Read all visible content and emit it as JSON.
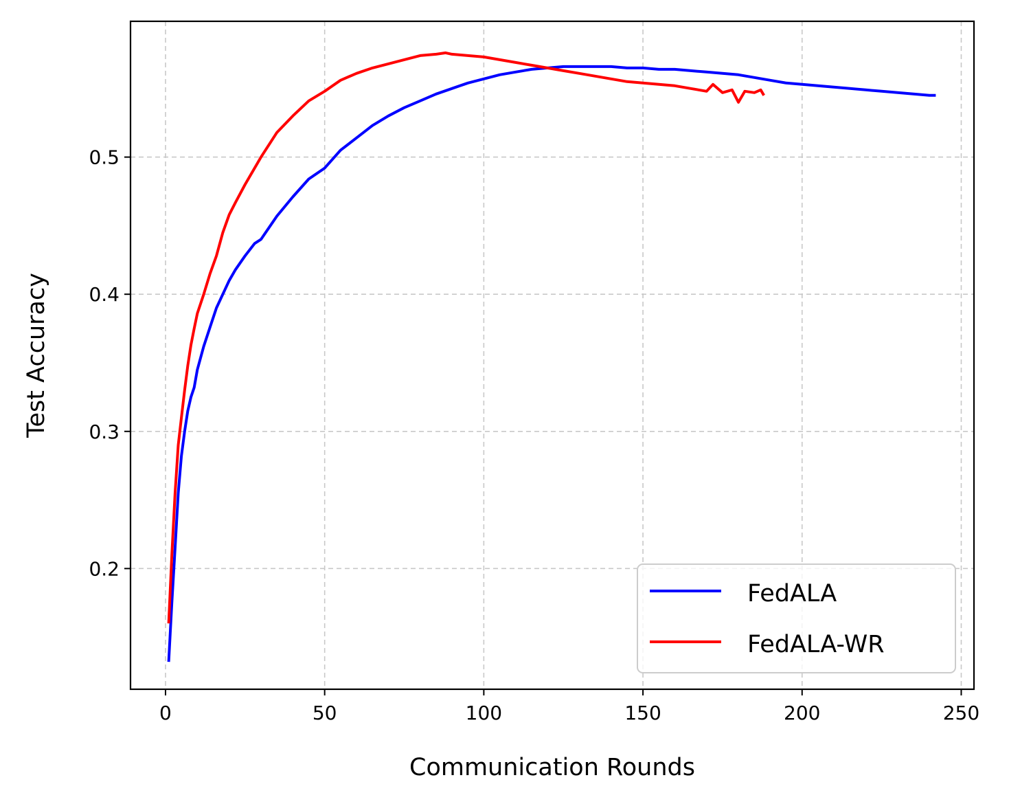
{
  "chart_data": {
    "type": "line",
    "title": "",
    "xlabel": "Communication Rounds",
    "ylabel": "Test Accuracy",
    "xlim": [
      -11,
      254
    ],
    "ylim": [
      0.112,
      0.599
    ],
    "xticks": [
      0,
      50,
      100,
      150,
      200,
      250
    ],
    "xtick_labels": [
      "0",
      "50",
      "100",
      "150",
      "200",
      "250"
    ],
    "yticks": [
      0.2,
      0.3,
      0.4,
      0.5
    ],
    "ytick_labels": [
      "0.2",
      "0.3",
      "0.4",
      "0.5"
    ],
    "grid": true,
    "legend_position": "bottom-right",
    "series": [
      {
        "name": "FedALA",
        "color": "#0000ff",
        "x": [
          1,
          2,
          3,
          4,
          5,
          6,
          7,
          8,
          9,
          10,
          12,
          14,
          16,
          18,
          20,
          22,
          25,
          28,
          30,
          35,
          40,
          45,
          50,
          55,
          60,
          65,
          70,
          75,
          80,
          85,
          90,
          95,
          100,
          105,
          110,
          115,
          120,
          125,
          130,
          135,
          140,
          145,
          150,
          155,
          160,
          165,
          170,
          175,
          180,
          185,
          190,
          195,
          200,
          205,
          210,
          215,
          220,
          225,
          230,
          235,
          240,
          242
        ],
        "y": [
          0.132,
          0.175,
          0.215,
          0.255,
          0.282,
          0.3,
          0.315,
          0.325,
          0.332,
          0.345,
          0.362,
          0.376,
          0.39,
          0.4,
          0.41,
          0.418,
          0.428,
          0.437,
          0.44,
          0.457,
          0.471,
          0.484,
          0.492,
          0.505,
          0.514,
          0.523,
          0.53,
          0.536,
          0.541,
          0.546,
          0.55,
          0.554,
          0.557,
          0.56,
          0.562,
          0.564,
          0.565,
          0.566,
          0.566,
          0.566,
          0.566,
          0.565,
          0.565,
          0.564,
          0.564,
          0.563,
          0.562,
          0.561,
          0.56,
          0.558,
          0.556,
          0.554,
          0.553,
          0.552,
          0.551,
          0.55,
          0.549,
          0.548,
          0.547,
          0.546,
          0.545,
          0.545
        ]
      },
      {
        "name": "FedALA-WR",
        "color": "#ff0000",
        "x": [
          1,
          2,
          3,
          4,
          5,
          6,
          7,
          8,
          9,
          10,
          12,
          14,
          16,
          18,
          20,
          22,
          25,
          28,
          30,
          35,
          40,
          45,
          50,
          55,
          60,
          65,
          70,
          75,
          80,
          85,
          88,
          90,
          95,
          100,
          105,
          110,
          115,
          120,
          125,
          130,
          135,
          140,
          145,
          150,
          155,
          160,
          165,
          170,
          172,
          175,
          178,
          180,
          182,
          185,
          187,
          188
        ],
        "y": [
          0.16,
          0.21,
          0.255,
          0.29,
          0.31,
          0.33,
          0.348,
          0.363,
          0.375,
          0.386,
          0.4,
          0.415,
          0.428,
          0.445,
          0.458,
          0.467,
          0.48,
          0.492,
          0.5,
          0.518,
          0.53,
          0.541,
          0.548,
          0.556,
          0.561,
          0.565,
          0.568,
          0.571,
          0.574,
          0.575,
          0.576,
          0.575,
          0.574,
          0.573,
          0.571,
          0.569,
          0.567,
          0.565,
          0.563,
          0.561,
          0.559,
          0.557,
          0.555,
          0.554,
          0.553,
          0.552,
          0.55,
          0.548,
          0.553,
          0.547,
          0.549,
          0.54,
          0.548,
          0.547,
          0.549,
          0.545
        ]
      }
    ]
  }
}
